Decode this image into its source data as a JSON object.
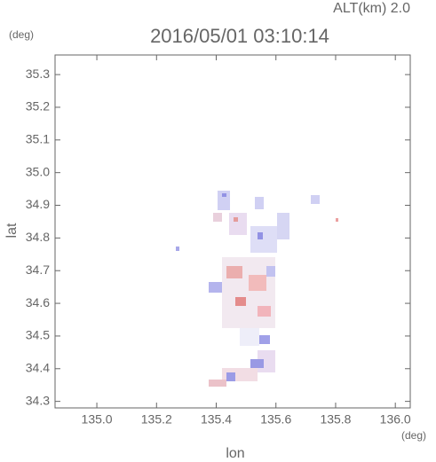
{
  "chart_data": {
    "type": "map",
    "title": "2016/05/01 03:10:14",
    "annotation": "ALT(km) 2.0",
    "y_unit": "(deg)",
    "x_unit": "(deg)",
    "xlabel": "lon",
    "ylabel": "lat",
    "xlim": [
      134.86,
      136.05
    ],
    "ylim": [
      34.28,
      35.36
    ],
    "xticks": [
      {
        "value": 135,
        "label": "135.0"
      },
      135.2,
      135.4,
      135.6,
      135.8,
      {
        "value": 136,
        "label": "136.0"
      }
    ],
    "yticks": [
      34.3,
      34.4,
      34.5,
      34.6,
      34.7,
      34.8,
      34.9,
      {
        "value": 35,
        "label": "35.0"
      },
      35.1,
      35.2,
      35.3
    ],
    "color": "#666666"
  }
}
